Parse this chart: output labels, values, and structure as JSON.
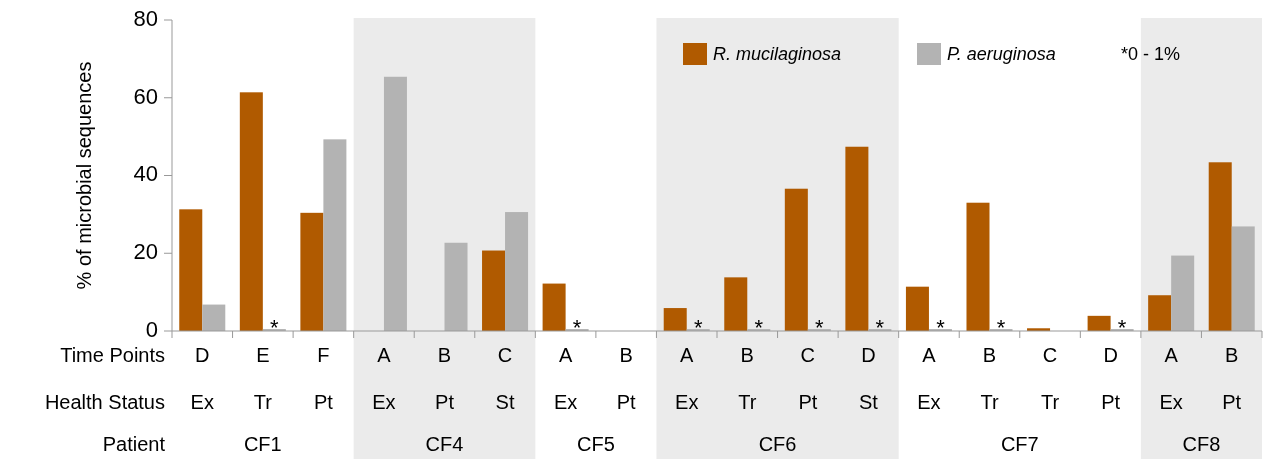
{
  "chart_data": {
    "type": "bar",
    "ylabel": "% of microbial sequences",
    "categories": [
      "D\nEx",
      "E\nTr",
      "F\nPt",
      "A\nEx",
      "B\nPt",
      "C\nSt",
      "A\nEx",
      "B\nPt",
      "A\nEx",
      "B\nTr",
      "C\nPt",
      "D\nSt",
      "A\nEx",
      "B\nTr",
      "C\nTr",
      "D\nPt",
      "A\nEx",
      "B\nPt"
    ],
    "series": [
      {
        "name": "R. mucilaginosa",
        "color": "#b05a00",
        "values": [
          31.3,
          61.4,
          30.4,
          0,
          0,
          20.7,
          12.2,
          0,
          5.9,
          13.8,
          36.6,
          47.4,
          11.4,
          33.0,
          0.7,
          3.9,
          9.2,
          43.4
        ]
      },
      {
        "name": "P. aeruginosa",
        "color": "#b3b3b3",
        "values": [
          6.8,
          0.5,
          49.3,
          65.4,
          22.7,
          30.6,
          0.5,
          0,
          0.5,
          0.5,
          0.5,
          0.5,
          0.5,
          0.5,
          0,
          0.5,
          19.4,
          26.9
        ],
        "value_labels": [
          null,
          "*",
          null,
          null,
          null,
          null,
          "*",
          null,
          "*",
          "*",
          "*",
          "*",
          "*",
          "*",
          null,
          "*",
          null,
          null
        ]
      }
    ],
    "ylim": [
      0,
      80
    ],
    "yticks": [
      0,
      20,
      40,
      60,
      80
    ],
    "legend": "top",
    "annotations": [
      "*0 - 1%",
      "Time Points",
      "Health Status",
      "Patient",
      "CF1",
      "CF4",
      "CF5",
      "CF6",
      "CF7",
      "CF8"
    ]
  }
}
